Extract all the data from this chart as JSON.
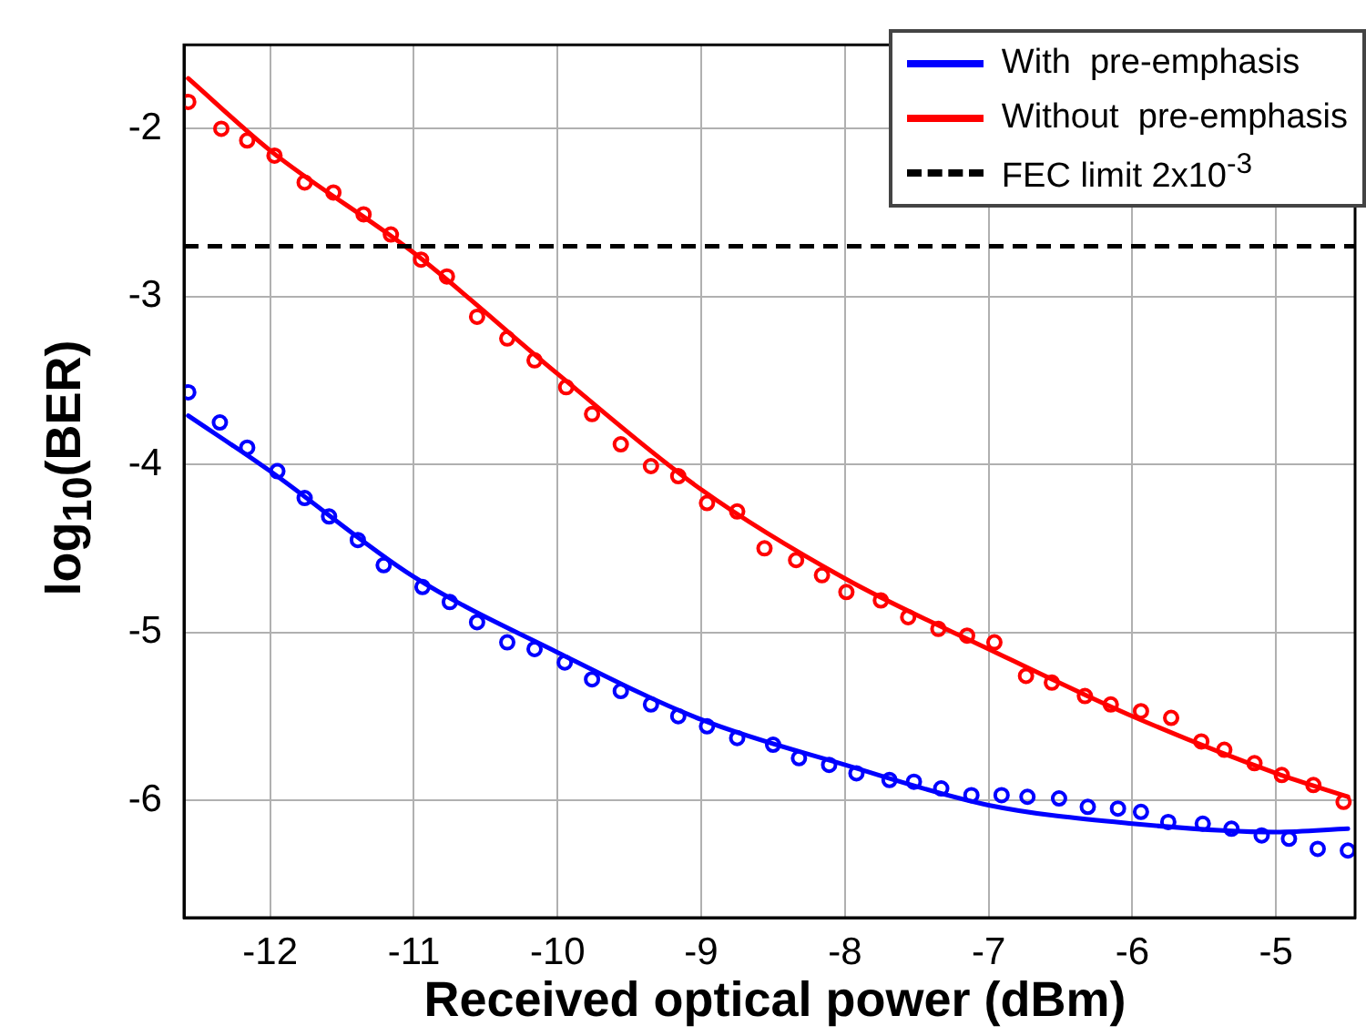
{
  "chart_data": {
    "type": "line",
    "xlabel": "Received optical power (dBm)",
    "ylabel": "log$_{10}$(BER)",
    "xlim": [
      -12.6,
      -4.45
    ],
    "ylim": [
      -6.7,
      -1.5
    ],
    "xticks": [
      -12,
      -11,
      -10,
      -9,
      -8,
      -7,
      -6,
      -5
    ],
    "yticks": [
      -6,
      -5,
      -4,
      -3,
      -2
    ],
    "grid": true,
    "legend": "top right",
    "series": [
      {
        "name": "With  pre-emphasis",
        "marker": "none",
        "line_style": "solid",
        "color": "#0000ff",
        "x": [
          -12.57,
          -12,
          -11,
          -10,
          -9,
          -8,
          -7,
          -6,
          -5,
          -4.5
        ],
        "values": [
          -3.71,
          -4.04,
          -4.67,
          -5.12,
          -5.52,
          -5.79,
          -6.03,
          -6.14,
          -6.19,
          -6.17
        ]
      },
      {
        "name": "Without  pre-emphasis",
        "marker": "none",
        "line_style": "solid",
        "color": "#ff0000",
        "x": [
          -12.57,
          -12,
          -11,
          -10,
          -9,
          -8,
          -7,
          -6,
          -5,
          -4.5
        ],
        "values": [
          -1.7,
          -2.13,
          -2.74,
          -3.46,
          -4.15,
          -4.68,
          -5.1,
          -5.5,
          -5.84,
          -5.98
        ]
      },
      {
        "type": "scatter",
        "marker": "circle",
        "color": "#0000ff",
        "x": [
          -12.57,
          -12.35,
          -12.16,
          -11.95,
          -11.76,
          -11.59,
          -11.39,
          -11.21,
          -10.94,
          -10.75,
          -10.56,
          -10.35,
          -10.16,
          -9.95,
          -9.76,
          -9.56,
          -9.35,
          -9.16,
          -8.96,
          -8.75,
          -8.5,
          -8.32,
          -8.11,
          -7.92,
          -7.69,
          -7.52,
          -7.33,
          -7.12,
          -6.91,
          -6.73,
          -6.51,
          -6.31,
          -6.1,
          -5.94,
          -5.75,
          -5.51,
          -5.31,
          -5.1,
          -4.91,
          -4.71,
          -4.5
        ],
        "values": [
          -3.57,
          -3.75,
          -3.9,
          -4.04,
          -4.2,
          -4.31,
          -4.45,
          -4.6,
          -4.73,
          -4.82,
          -4.94,
          -5.06,
          -5.1,
          -5.18,
          -5.28,
          -5.35,
          -5.43,
          -5.5,
          -5.56,
          -5.63,
          -5.67,
          -5.75,
          -5.79,
          -5.84,
          -5.88,
          -5.89,
          -5.93,
          -5.97,
          -5.97,
          -5.98,
          -5.99,
          -6.04,
          -6.05,
          -6.07,
          -6.13,
          -6.14,
          -6.17,
          -6.21,
          -6.23,
          -6.29,
          -6.3
        ]
      },
      {
        "type": "scatter",
        "marker": "circle",
        "color": "#ff0000",
        "x": [
          -12.57,
          -12.34,
          -12.16,
          -11.97,
          -11.76,
          -11.56,
          -11.35,
          -11.16,
          -10.95,
          -10.77,
          -10.56,
          -10.35,
          -10.16,
          -9.94,
          -9.76,
          -9.56,
          -9.35,
          -9.16,
          -8.96,
          -8.75,
          -8.56,
          -8.34,
          -8.16,
          -7.99,
          -7.75,
          -7.56,
          -7.35,
          -7.15,
          -6.96,
          -6.74,
          -6.56,
          -6.33,
          -6.15,
          -5.94,
          -5.73,
          -5.52,
          -5.36,
          -5.15,
          -4.96,
          -4.74,
          -4.53
        ],
        "values": [
          -1.84,
          -2.0,
          -2.07,
          -2.16,
          -2.32,
          -2.38,
          -2.51,
          -2.63,
          -2.78,
          -2.88,
          -3.12,
          -3.25,
          -3.38,
          -3.54,
          -3.7,
          -3.88,
          -4.01,
          -4.07,
          -4.23,
          -4.28,
          -4.5,
          -4.57,
          -4.66,
          -4.76,
          -4.81,
          -4.91,
          -4.98,
          -5.02,
          -5.06,
          -5.26,
          -5.3,
          -5.38,
          -5.43,
          -5.47,
          -5.51,
          -5.65,
          -5.7,
          -5.78,
          -5.85,
          -5.91,
          -6.01
        ]
      }
    ],
    "ref_lines": [
      {
        "axis": "y",
        "value": -2.7,
        "label": "FEC limit 2x10$^{-3}$",
        "color": "#000000",
        "line_style": "dashed"
      }
    ]
  }
}
